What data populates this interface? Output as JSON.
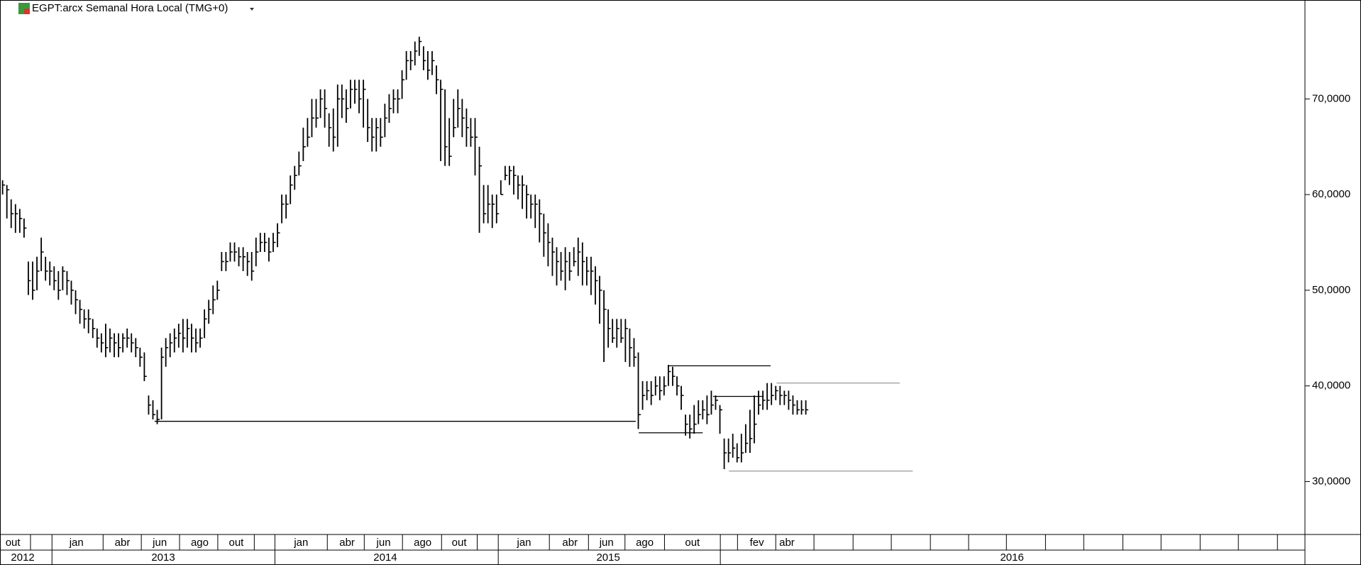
{
  "chart_data": {
    "type": "ohlc",
    "title": "EGPT:arcx Semanal Hora Local (TMG+0)",
    "color": "#000000",
    "xlim": [
      0,
      303.8
    ],
    "ylim": [
      24.47,
      80.34
    ],
    "yticks": [
      {
        "value": 30,
        "label": "30,0000"
      },
      {
        "value": 40,
        "label": "40,0000"
      },
      {
        "value": 50,
        "label": "50,0000"
      },
      {
        "value": 60,
        "label": "60,0000"
      },
      {
        "value": 70,
        "label": "70,0000"
      }
    ],
    "close": [
      61,
      60.5,
      58,
      58,
      57.5,
      56.5,
      51,
      50,
      52,
      54,
      52,
      52,
      51,
      50,
      52,
      51,
      50,
      49,
      48,
      47,
      47,
      46,
      45,
      44.5,
      44,
      45,
      44.5,
      44,
      45,
      45,
      44.5,
      44,
      43,
      41,
      38,
      37,
      36.5,
      43,
      44,
      44.5,
      45,
      45.5,
      45,
      46,
      45,
      44.5,
      45,
      47,
      48,
      49,
      50,
      53,
      53,
      54,
      54,
      53.5,
      53.5,
      53,
      52,
      54,
      55,
      55,
      54,
      55,
      56,
      59,
      59,
      61,
      62,
      63,
      65,
      66,
      68,
      68,
      70,
      69,
      67,
      66,
      70,
      70,
      69,
      71,
      71,
      70,
      71,
      67,
      66,
      67,
      66,
      68,
      69,
      70,
      70,
      72,
      74,
      74,
      75,
      76,
      74,
      73,
      74,
      72,
      71,
      65,
      64,
      67,
      69,
      68,
      67,
      66,
      66,
      63,
      58,
      59,
      59,
      58,
      60,
      62,
      62.5,
      62,
      61,
      61,
      60,
      59,
      59,
      58,
      56,
      55,
      54,
      53,
      52,
      53,
      52,
      53,
      54,
      53,
      52,
      52,
      51,
      50,
      48,
      46,
      45,
      46,
      45,
      46,
      44,
      43,
      37,
      39,
      39.5,
      39,
      40,
      39.5,
      40,
      41.5,
      41,
      40,
      39,
      36,
      35.5,
      36,
      37,
      37.5,
      37,
      38,
      38.5,
      37.5,
      33,
      33,
      33.5,
      32.5,
      33,
      34,
      34.5,
      36,
      38,
      38.5,
      38.5,
      39,
      39.5,
      39,
      39,
      38.5,
      38,
      37.5,
      37.5,
      37.5
    ],
    "high": [
      61.5,
      61,
      59.5,
      59,
      58.5,
      57.5,
      53,
      53,
      53.5,
      55.5,
      53.5,
      53,
      52.5,
      52,
      52.5,
      52,
      51,
      50,
      49,
      48,
      48,
      47,
      46,
      45.5,
      46.5,
      46,
      45.5,
      45.5,
      45.5,
      46,
      45.5,
      45,
      44,
      43.5,
      39,
      38.5,
      37.5,
      44,
      45,
      45.5,
      46,
      46.5,
      47,
      47,
      46.5,
      46,
      46,
      48,
      49,
      50.5,
      51,
      54,
      54,
      55,
      55,
      54.5,
      54.5,
      54,
      54,
      55.5,
      56,
      56,
      55.5,
      56,
      57,
      60,
      60,
      62,
      63,
      64.5,
      67,
      68,
      70,
      70,
      71,
      71,
      68.5,
      69,
      71.5,
      71.5,
      71,
      72,
      72,
      72,
      72,
      70,
      68,
      68,
      68,
      69.5,
      70.5,
      71,
      71,
      73,
      75,
      75,
      76,
      76.5,
      75.5,
      75,
      75,
      73.5,
      72,
      71,
      68,
      70,
      71,
      70,
      69,
      68,
      68,
      65,
      61,
      61,
      60,
      60,
      61.5,
      63,
      63,
      63,
      62,
      62,
      61,
      60,
      60,
      59.5,
      58,
      57,
      55.5,
      54.5,
      54,
      54.5,
      54,
      54.5,
      55.5,
      55,
      53.5,
      53.5,
      52.5,
      51.5,
      50,
      48,
      47,
      47,
      47,
      47,
      46,
      45,
      43.5,
      40.5,
      40.5,
      40.5,
      41,
      41,
      41,
      42.2,
      42,
      41,
      40,
      37,
      37,
      38,
      38.5,
      38.5,
      39,
      39.5,
      39,
      38,
      34.5,
      34.5,
      35,
      34,
      35,
      36,
      37.5,
      39,
      39.5,
      39.5,
      40.3,
      40.3,
      40,
      40,
      39.5,
      39.5,
      39,
      38.5,
      38.5,
      38.5
    ],
    "low": [
      60,
      57.5,
      56.5,
      56,
      56,
      55.5,
      49.5,
      49,
      50,
      52,
      51,
      50.5,
      50,
      49,
      50,
      49.5,
      48.5,
      47.5,
      46.5,
      46,
      45.5,
      45,
      44,
      43.5,
      43,
      43.5,
      43,
      43,
      43.5,
      44,
      43.5,
      43,
      42,
      40.5,
      37,
      36.5,
      36,
      36.5,
      42,
      43,
      43.5,
      44,
      43.5,
      44,
      43.5,
      43.5,
      44,
      45,
      46.5,
      47.5,
      49,
      52,
      52,
      53,
      53,
      52.5,
      52,
      51.5,
      51,
      52.5,
      54,
      54,
      53,
      54,
      54.5,
      57,
      57.5,
      59,
      60.5,
      62,
      63.5,
      65,
      66,
      67,
      68,
      67,
      65,
      64.5,
      65,
      68,
      67.5,
      69,
      69.5,
      68.5,
      67,
      65.5,
      64.5,
      64.5,
      65,
      66,
      67.5,
      68.5,
      68.5,
      70,
      72,
      73,
      73.5,
      74.5,
      73,
      72,
      72.5,
      70.5,
      63.5,
      63,
      63,
      66,
      67,
      66,
      65,
      65,
      62,
      56,
      57,
      57,
      56.5,
      57,
      60,
      61.5,
      61,
      60,
      59.5,
      58.5,
      57.5,
      57.5,
      56.5,
      55,
      53.5,
      52.5,
      51.5,
      50.5,
      51,
      50,
      51,
      52.5,
      51.5,
      50.5,
      50.5,
      49.5,
      48.5,
      46.5,
      42.5,
      44,
      44.5,
      44,
      44.5,
      42.5,
      42,
      42,
      35.5,
      37.5,
      38.5,
      38,
      39,
      38.5,
      39,
      40,
      40,
      39,
      37.5,
      34.8,
      34.5,
      35,
      36,
      36.5,
      36,
      37,
      37.5,
      35,
      31.3,
      32,
      32.5,
      32,
      32,
      33,
      33,
      34,
      37,
      37.5,
      37.5,
      38,
      38.5,
      38,
      38,
      37.5,
      37,
      37,
      37,
      37
    ],
    "lines": [
      {
        "x": [
          36,
          148
        ],
        "value": 36.3,
        "color": "#000000"
      },
      {
        "x": [
          155.5,
          179.4
        ],
        "value": 42.1,
        "color": "#000000"
      },
      {
        "x": [
          148.7,
          163.6
        ],
        "value": 35.1,
        "color": "#000000"
      },
      {
        "x": [
          166,
          177.8
        ],
        "value": 38.9,
        "color": "#000000"
      },
      {
        "x": [
          180.8,
          209.5
        ],
        "value": 40.3,
        "color": "#999999"
      },
      {
        "x": [
          169.7,
          212.5
        ],
        "value": 31.1,
        "color": "#999999"
      }
    ],
    "month_ticks": [
      {
        "value": 3.0,
        "label": "out"
      },
      {
        "value": 17.8,
        "label": "jan"
      },
      {
        "value": 28.5,
        "label": "abr"
      },
      {
        "value": 37.2,
        "label": "jun"
      },
      {
        "value": 46.5,
        "label": "ago"
      },
      {
        "value": 55,
        "label": "out"
      },
      {
        "value": 70.1,
        "label": "jan"
      },
      {
        "value": 80.8,
        "label": "abr"
      },
      {
        "value": 89.3,
        "label": "jun"
      },
      {
        "value": 98.4,
        "label": "ago"
      },
      {
        "value": 106.9,
        "label": "out"
      },
      {
        "value": 122,
        "label": "jan"
      },
      {
        "value": 132.7,
        "label": "abr"
      },
      {
        "value": 141.2,
        "label": "jun"
      },
      {
        "value": 150.1,
        "label": "ago"
      },
      {
        "value": 161.2,
        "label": "out"
      },
      {
        "value": 176.2,
        "label": "fev"
      },
      {
        "value": 183.2,
        "label": "abr"
      }
    ],
    "month_dividers": [
      7.1,
      12.1,
      24,
      32.9,
      41.8,
      50.7,
      59.2,
      64,
      76.2,
      84.8,
      93.7,
      102.8,
      111.1,
      116,
      127.9,
      137,
      145.5,
      154.7,
      167.7,
      171.7,
      180.6,
      189.5,
      198.6,
      207.5,
      216.6,
      225.5,
      234.3,
      243.4,
      252.3,
      261.4,
      270.3,
      279.4,
      288.3,
      297.4
    ],
    "year_ticks": [
      {
        "value": 5.3,
        "label": "2012"
      },
      {
        "value": 38,
        "label": "2013"
      },
      {
        "value": 89.7,
        "label": "2014"
      },
      {
        "value": 141.6,
        "label": "2015"
      },
      {
        "value": 235.6,
        "label": "2016"
      }
    ],
    "year_dividers": [
      12.1,
      64,
      116,
      167.7
    ]
  }
}
